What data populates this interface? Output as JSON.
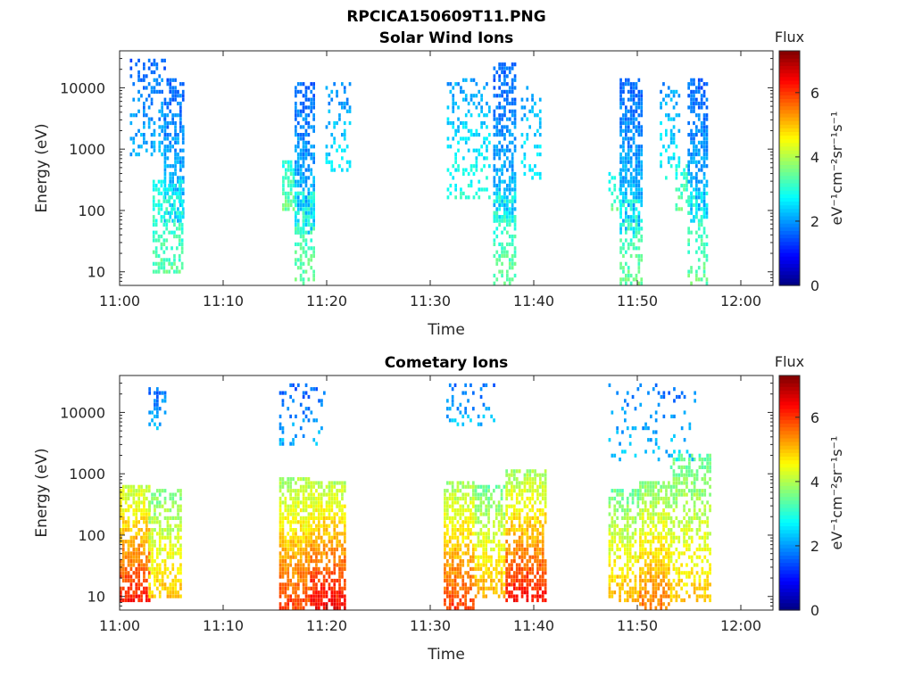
{
  "figure": {
    "title": "RPCICA150609T11.PNG"
  },
  "colors": {
    "colormap": "jet",
    "axis": "#262626",
    "background": "#ffffff"
  },
  "chart_data": [
    {
      "type": "heatmap",
      "title": "Solar Wind Ions",
      "xlabel": "Time",
      "ylabel": "Energy (eV)",
      "x_ticks": [
        "11:00",
        "11:10",
        "11:20",
        "11:30",
        "11:40",
        "11:50",
        "12:00"
      ],
      "x_range_minutes": [
        0,
        63.5
      ],
      "y_scale": "log",
      "y_ticks": [
        "10",
        "100",
        "1000",
        "10000"
      ],
      "ylim": [
        6,
        40000
      ],
      "colorbar": {
        "label": "Flux",
        "unit": "eV⁻¹cm⁻²sr⁻¹s⁻¹",
        "range": [
          0,
          7.3
        ],
        "ticks": [
          "0",
          "2",
          "4",
          "6"
        ]
      },
      "bursts": [
        {
          "start": 1.0,
          "end": 4.3,
          "emin": 800,
          "emax": 30000,
          "fmin": 1.5,
          "fmax": 2.2,
          "density": 0.35
        },
        {
          "start": 4.3,
          "end": 6.2,
          "emin": 60,
          "emax": 15000,
          "fmin": 1.4,
          "fmax": 2.4,
          "density": 0.6
        },
        {
          "start": 3.2,
          "end": 6.2,
          "emin": 10,
          "emax": 300,
          "fmin": 2.7,
          "fmax": 3.4,
          "density": 0.45
        },
        {
          "start": 15.8,
          "end": 17.0,
          "emin": 100,
          "emax": 700,
          "fmin": 2.8,
          "fmax": 3.5,
          "density": 0.7
        },
        {
          "start": 17.0,
          "end": 18.8,
          "emin": 40,
          "emax": 12000,
          "fmin": 1.4,
          "fmax": 2.4,
          "density": 0.6
        },
        {
          "start": 17.0,
          "end": 18.8,
          "emin": 6,
          "emax": 200,
          "fmin": 2.8,
          "fmax": 3.5,
          "density": 0.45
        },
        {
          "start": 20.0,
          "end": 22.5,
          "emin": 400,
          "emax": 15000,
          "fmin": 1.7,
          "fmax": 2.6,
          "density": 0.25
        },
        {
          "start": 31.8,
          "end": 36.0,
          "emin": 150,
          "emax": 15000,
          "fmin": 1.8,
          "fmax": 3.0,
          "density": 0.25
        },
        {
          "start": 36.3,
          "end": 38.5,
          "emin": 60,
          "emax": 25000,
          "fmin": 1.4,
          "fmax": 2.4,
          "density": 0.6
        },
        {
          "start": 36.3,
          "end": 38.5,
          "emin": 6,
          "emax": 200,
          "fmin": 2.8,
          "fmax": 3.5,
          "density": 0.45
        },
        {
          "start": 39.0,
          "end": 41.0,
          "emin": 300,
          "emax": 10000,
          "fmin": 1.8,
          "fmax": 2.8,
          "density": 0.25
        },
        {
          "start": 47.5,
          "end": 48.6,
          "emin": 100,
          "emax": 400,
          "fmin": 2.6,
          "fmax": 3.4,
          "density": 0.35
        },
        {
          "start": 48.6,
          "end": 50.8,
          "emin": 40,
          "emax": 15000,
          "fmin": 1.4,
          "fmax": 2.4,
          "density": 0.6
        },
        {
          "start": 48.6,
          "end": 50.8,
          "emin": 6,
          "emax": 150,
          "fmin": 2.8,
          "fmax": 3.5,
          "density": 0.45
        },
        {
          "start": 52.5,
          "end": 54.5,
          "emin": 300,
          "emax": 12000,
          "fmin": 1.8,
          "fmax": 2.8,
          "density": 0.25
        },
        {
          "start": 54.0,
          "end": 55.2,
          "emin": 100,
          "emax": 600,
          "fmin": 2.8,
          "fmax": 3.5,
          "density": 0.6
        },
        {
          "start": 55.2,
          "end": 57.2,
          "emin": 60,
          "emax": 15000,
          "fmin": 1.4,
          "fmax": 2.4,
          "density": 0.6
        },
        {
          "start": 55.2,
          "end": 57.2,
          "emin": 6,
          "emax": 200,
          "fmin": 2.8,
          "fmax": 3.5,
          "density": 0.4
        }
      ]
    },
    {
      "type": "heatmap",
      "title": "Cometary Ions",
      "xlabel": "Time",
      "ylabel": "Energy (eV)",
      "x_ticks": [
        "11:00",
        "11:10",
        "11:20",
        "11:30",
        "11:40",
        "11:50",
        "12:00"
      ],
      "x_range_minutes": [
        0,
        63.5
      ],
      "y_scale": "log",
      "y_ticks": [
        "10",
        "100",
        "1000",
        "10000"
      ],
      "ylim": [
        6,
        40000
      ],
      "colorbar": {
        "label": "Flux",
        "unit": "eV⁻¹cm⁻²sr⁻¹s⁻¹",
        "range": [
          0,
          7.3
        ],
        "ticks": [
          "0",
          "2",
          "4",
          "6"
        ]
      },
      "bursts": [
        {
          "start": 0.0,
          "end": 3.0,
          "emin": 8,
          "emax": 700,
          "fmin": 3.5,
          "fmax": 6.3,
          "density": 0.7
        },
        {
          "start": 2.8,
          "end": 6.0,
          "emin": 10,
          "emax": 600,
          "fmin": 3.2,
          "fmax": 5.0,
          "density": 0.6
        },
        {
          "start": 2.8,
          "end": 4.5,
          "emin": 5000,
          "emax": 25000,
          "fmin": 1.5,
          "fmax": 2.3,
          "density": 0.3
        },
        {
          "start": 15.5,
          "end": 18.5,
          "emin": 6,
          "emax": 900,
          "fmin": 3.3,
          "fmax": 6.0,
          "density": 0.75
        },
        {
          "start": 18.5,
          "end": 21.8,
          "emin": 6,
          "emax": 800,
          "fmin": 3.3,
          "fmax": 6.5,
          "density": 0.7
        },
        {
          "start": 15.5,
          "end": 20.0,
          "emin": 3000,
          "emax": 28000,
          "fmin": 1.4,
          "fmax": 2.2,
          "density": 0.2
        },
        {
          "start": 31.5,
          "end": 34.5,
          "emin": 6,
          "emax": 800,
          "fmin": 3.3,
          "fmax": 6.0,
          "density": 0.7
        },
        {
          "start": 34.5,
          "end": 37.5,
          "emin": 10,
          "emax": 700,
          "fmin": 3.0,
          "fmax": 5.2,
          "density": 0.6
        },
        {
          "start": 37.5,
          "end": 41.5,
          "emin": 8,
          "emax": 1200,
          "fmin": 3.2,
          "fmax": 6.4,
          "density": 0.7
        },
        {
          "start": 31.5,
          "end": 36.5,
          "emin": 6000,
          "emax": 28000,
          "fmin": 1.5,
          "fmax": 2.3,
          "density": 0.2
        },
        {
          "start": 47.5,
          "end": 50.5,
          "emin": 8,
          "emax": 600,
          "fmin": 3.0,
          "fmax": 5.2,
          "density": 0.6
        },
        {
          "start": 50.5,
          "end": 53.5,
          "emin": 6,
          "emax": 800,
          "fmin": 3.2,
          "fmax": 5.6,
          "density": 0.65
        },
        {
          "start": 53.5,
          "end": 57.5,
          "emin": 8,
          "emax": 2000,
          "fmin": 3.0,
          "fmax": 5.0,
          "density": 0.55
        },
        {
          "start": 47.5,
          "end": 56.0,
          "emin": 1500,
          "emax": 30000,
          "fmin": 1.5,
          "fmax": 2.4,
          "density": 0.12
        }
      ]
    }
  ]
}
